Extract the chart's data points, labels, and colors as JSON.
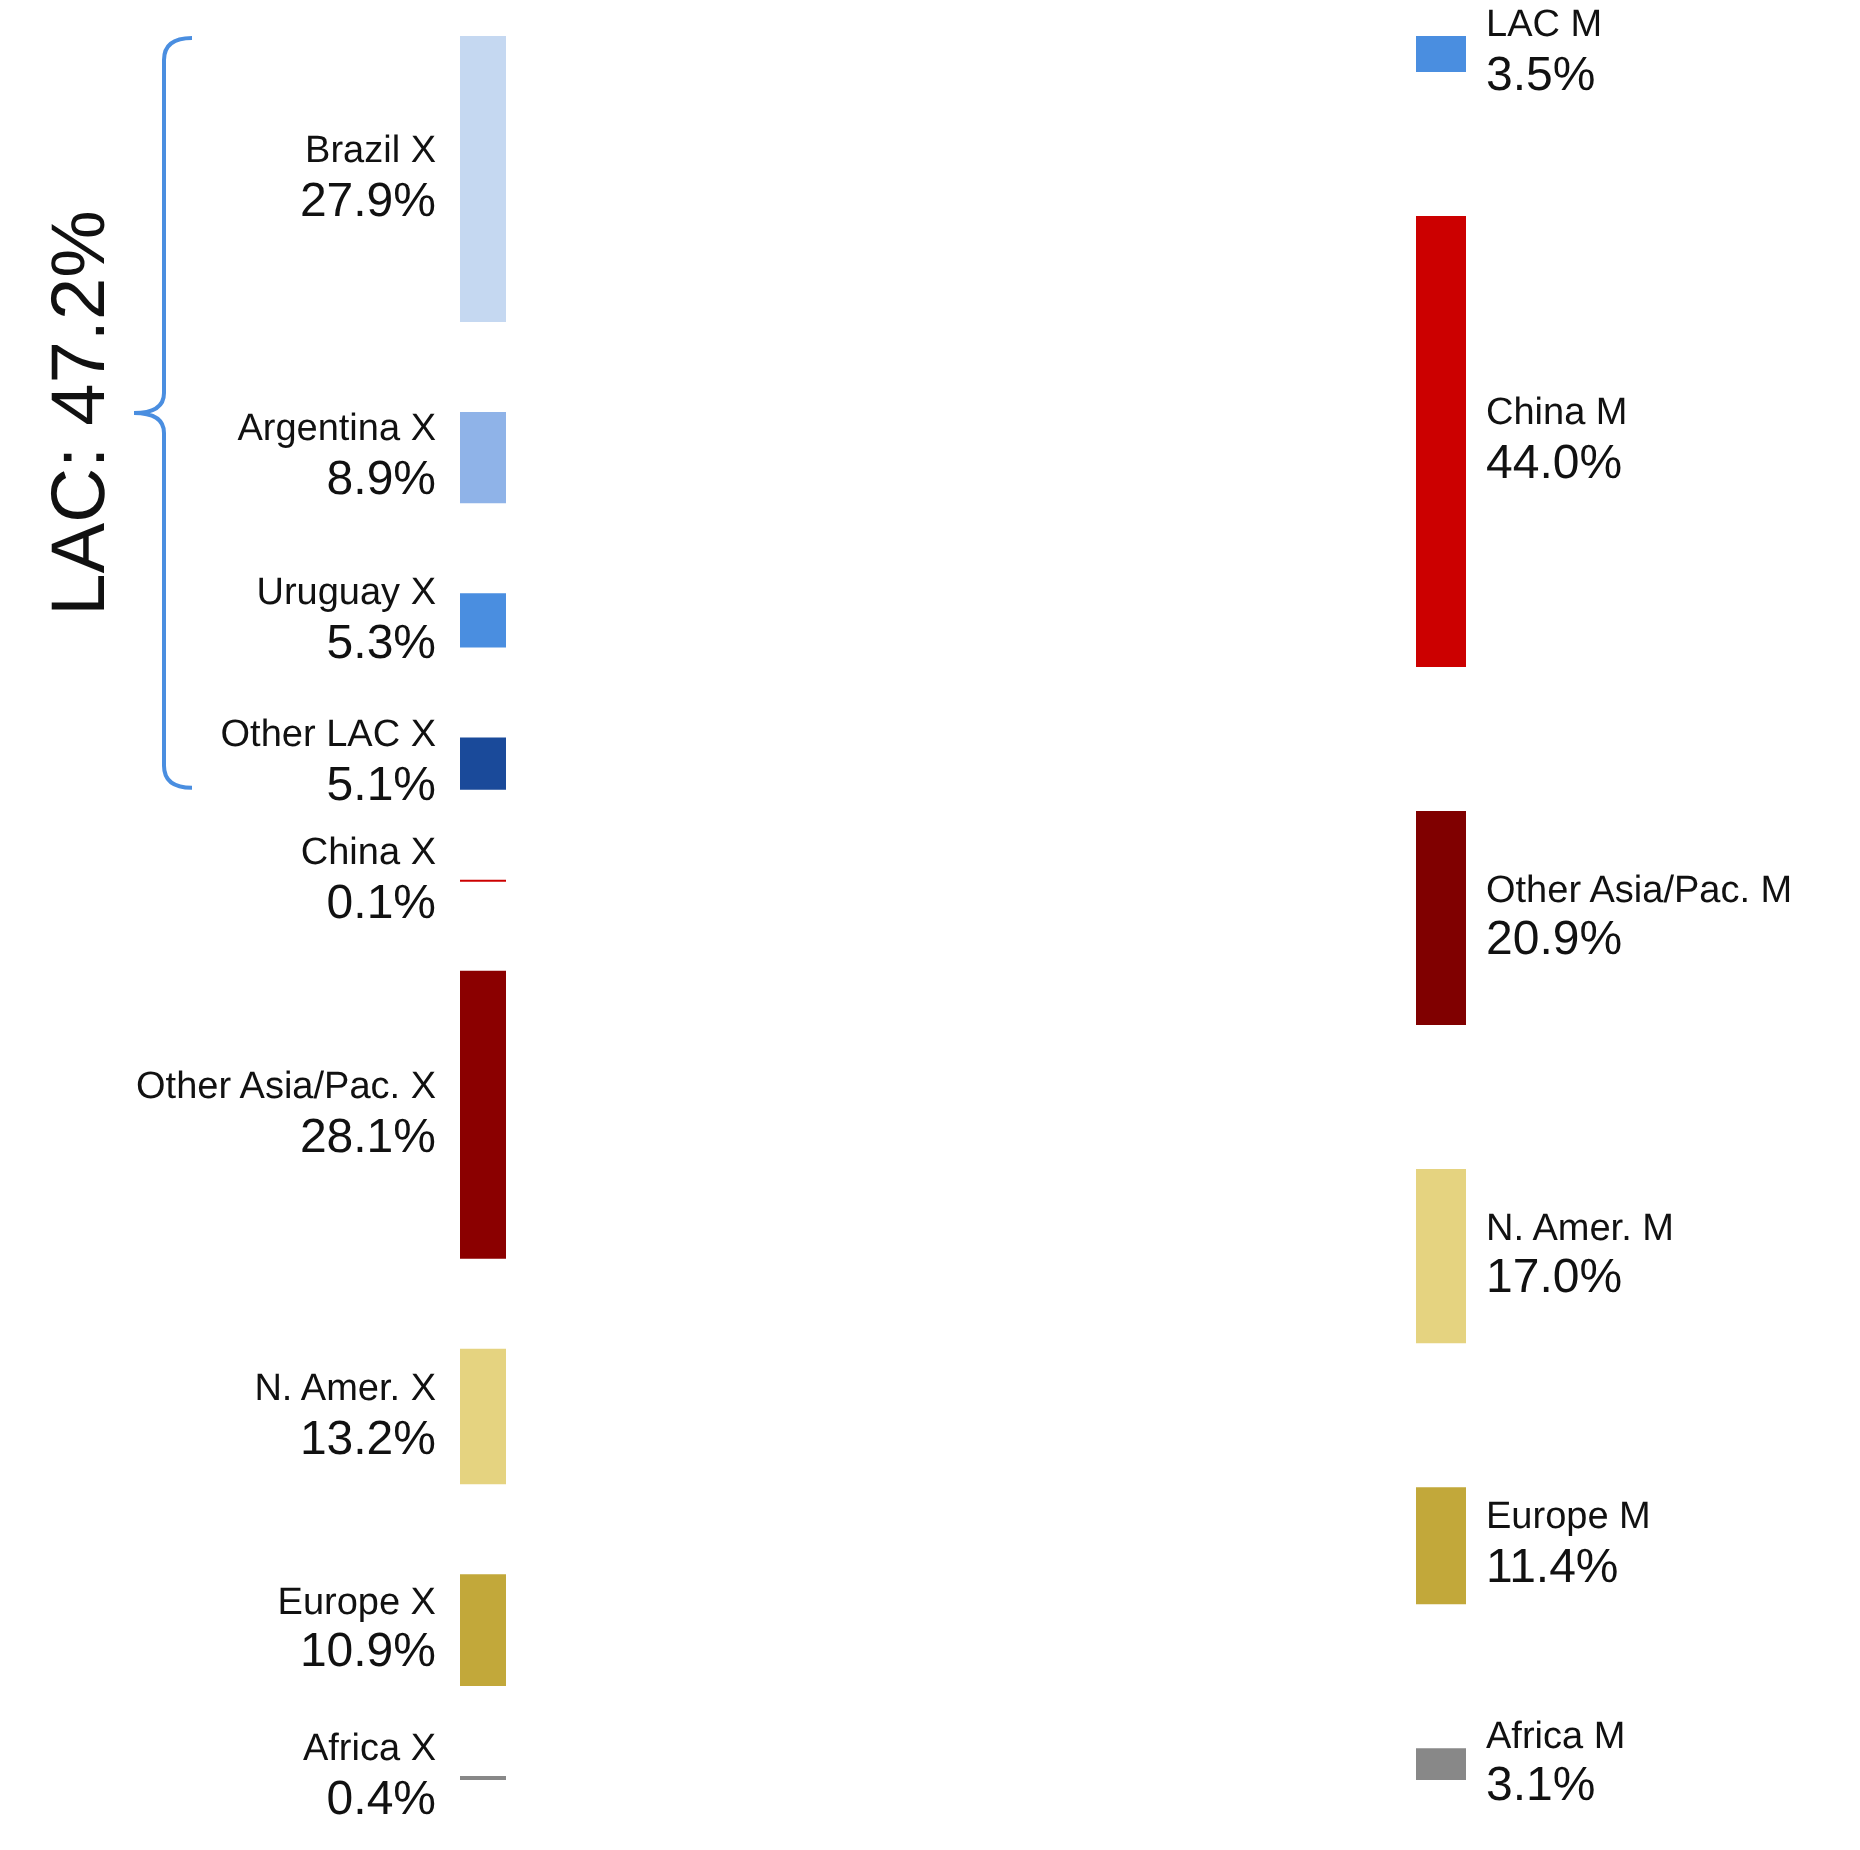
{
  "chart_data": {
    "type": "other",
    "categories": [
      "Brazil X",
      "Argentina X",
      "Uruguay X",
      "Other LAC X",
      "China X",
      "Other Asia/Pac. X",
      "N. Amer. X",
      "Europe X",
      "Africa X",
      "LAC M",
      "China M",
      "Other Asia/Pac. M",
      "N. Amer. M",
      "Europe M",
      "Africa M"
    ],
    "colors": [
      "#c5d8f1",
      "#8fb3e8",
      "#4a8ee0",
      "#1a4a9a",
      "#cc0000",
      "#8b0000",
      "#e5d380",
      "#c2a83a",
      "#888888",
      "#4a8ee0",
      "#cc0000",
      "#800000",
      "#e5d380",
      "#c2a83a",
      "#888888"
    ],
    "series": [
      {
        "values": [
          27.9,
          8.9,
          5.3,
          5.1,
          0.1,
          28.1,
          13.2,
          10.9,
          0.4,
          null,
          null,
          null,
          null,
          null,
          null
        ],
        "value_labels": [
          "27.9%",
          "8.9%",
          "5.3%",
          "5.1%",
          "0.1%",
          "28.1%",
          "13.2%",
          "10.9%",
          "0.4%",
          null,
          null,
          null,
          null,
          null,
          null
        ]
      },
      {
        "values": [
          null,
          null,
          null,
          null,
          null,
          null,
          null,
          null,
          null,
          3.5,
          44.0,
          20.9,
          17.0,
          11.4,
          3.1
        ],
        "value_labels": [
          null,
          null,
          null,
          null,
          null,
          null,
          null,
          null,
          null,
          "3.5%",
          "44.0%",
          "20.9%",
          "17.0%",
          "11.4%",
          "3.1%"
        ]
      }
    ],
    "annotations": [
      "LAC: 47.2%"
    ]
  }
}
